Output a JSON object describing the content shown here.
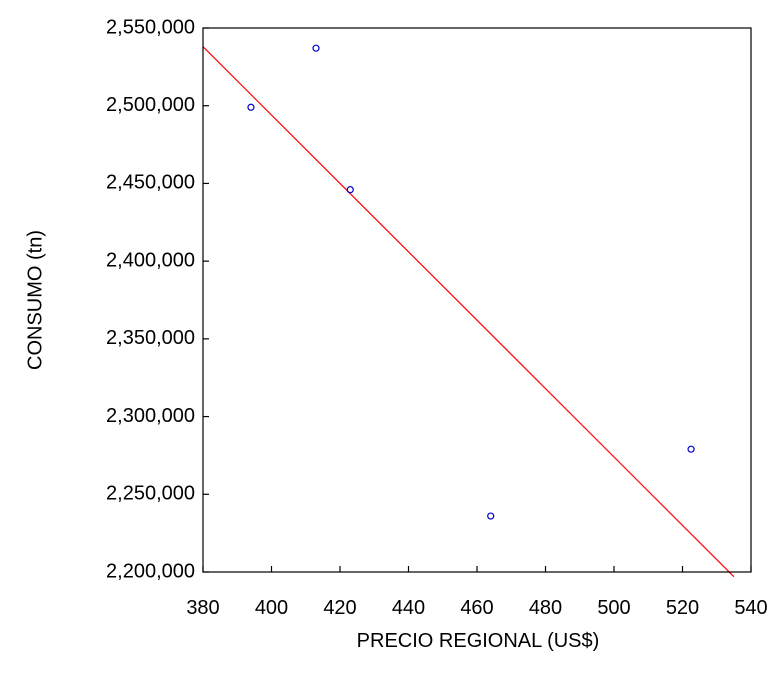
{
  "chart_data": {
    "type": "scatter",
    "title": "",
    "xlabel": "PRECIO REGIONAL (US$)",
    "ylabel": "CONSUMO (tn)",
    "xlim": [
      380,
      540
    ],
    "ylim": [
      2200000,
      2550000
    ],
    "x_ticks": [
      380,
      400,
      420,
      440,
      460,
      480,
      500,
      520,
      540
    ],
    "x_tick_labels": [
      "380",
      "400",
      "420",
      "440",
      "460",
      "480",
      "500",
      "520",
      "540"
    ],
    "y_ticks": [
      2200000,
      2250000,
      2300000,
      2350000,
      2400000,
      2450000,
      2500000,
      2550000
    ],
    "y_tick_labels": [
      "2,200,000",
      "2,250,000",
      "2,300,000",
      "2,350,000",
      "2,400,000",
      "2,450,000",
      "2,500,000",
      "2,550,000"
    ],
    "grid": false,
    "points": [
      {
        "x": 394,
        "y": 2499000
      },
      {
        "x": 413,
        "y": 2537000
      },
      {
        "x": 423,
        "y": 2446000
      },
      {
        "x": 464,
        "y": 2236000
      },
      {
        "x": 522.5,
        "y": 2279000
      }
    ],
    "fit_line": {
      "x": [
        380,
        535
      ],
      "y": [
        2538000,
        2197000
      ]
    },
    "colors": {
      "points": "#0000cc",
      "fit_line": "#ff0000",
      "axes": "#000000"
    }
  }
}
